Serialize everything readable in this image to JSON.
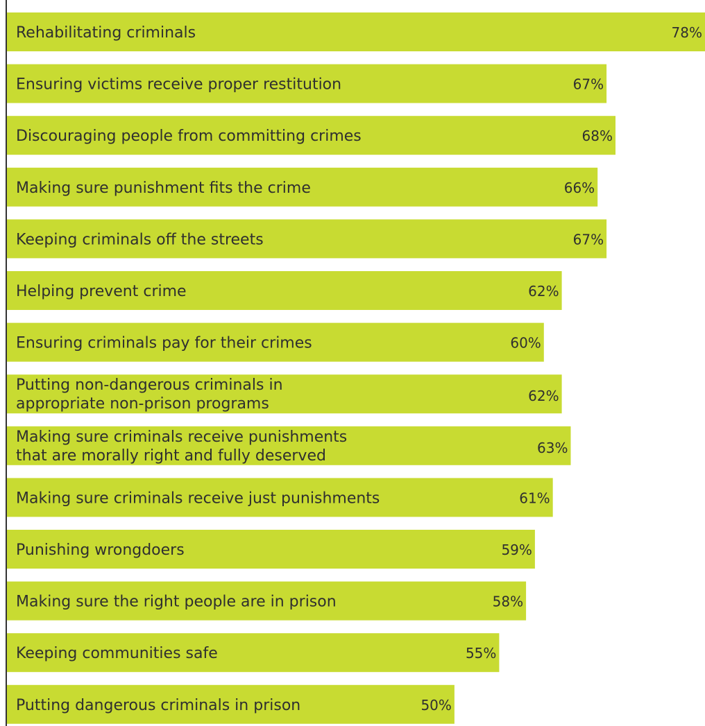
{
  "chart_data": {
    "type": "bar",
    "orientation": "horizontal",
    "title": "",
    "xlabel": "",
    "ylabel": "",
    "categories": [
      [
        "Rehabilitating criminals"
      ],
      [
        "Ensuring victims receive proper restitution"
      ],
      [
        "Discouraging people from committing crimes"
      ],
      [
        "Making sure punishment fits the crime"
      ],
      [
        "Keeping criminals off the streets"
      ],
      [
        "Helping prevent crime"
      ],
      [
        "Ensuring criminals pay for their crimes"
      ],
      [
        "Putting non-dangerous criminals in",
        "appropriate non-prison programs"
      ],
      [
        "Making sure criminals receive punishments",
        "that are morally right and fully deserved"
      ],
      [
        "Making sure criminals receive just punishments"
      ],
      [
        "Punishing wrongdoers"
      ],
      [
        "Making sure the right people are in prison"
      ],
      [
        "Keeping communities safe"
      ],
      [
        "Putting dangerous criminals in prison"
      ]
    ],
    "values": [
      78,
      67,
      68,
      66,
      67,
      62,
      60,
      62,
      63,
      61,
      59,
      58,
      55,
      50
    ],
    "value_labels": [
      "78%",
      "67%",
      "68%",
      "66%",
      "67%",
      "62%",
      "60%",
      "62%",
      "63%",
      "61%",
      "59%",
      "58%",
      "55%",
      "50%"
    ],
    "xlim": [
      0,
      78
    ],
    "grid": false,
    "legend": "none",
    "colors": {
      "bar": "#c8db32",
      "text": "#2f2f2f",
      "axis": "#333333"
    }
  }
}
